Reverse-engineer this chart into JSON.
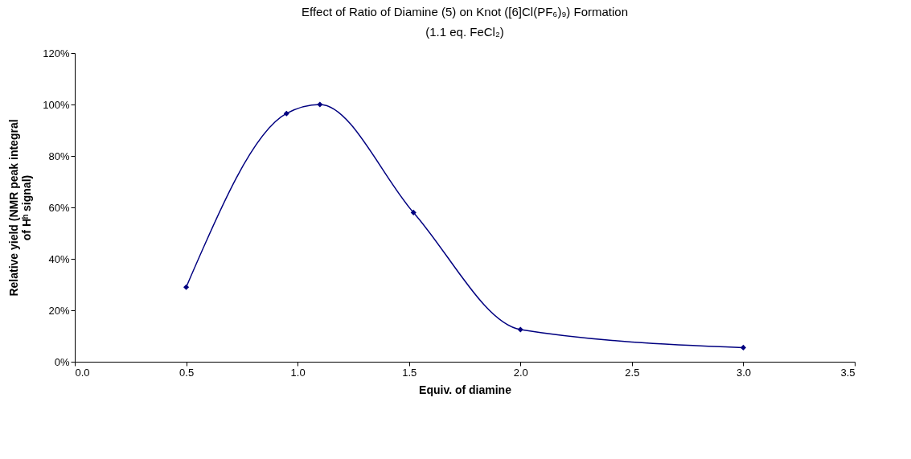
{
  "chart_data": {
    "type": "line",
    "title": "Effect of Ratio of Diamine (5) on Knot ([6]Cl(PF₆)₉) Formation",
    "subtitle": "(1.1 eq. FeCl₂)",
    "xlabel": "Equiv. of diamine",
    "ylabel": "Relative yield  (NMR peak integral\nof Hʰ signal)",
    "x": [
      0.5,
      0.95,
      1.1,
      1.52,
      2.0,
      3.0
    ],
    "series": [
      {
        "color": "#000080",
        "values": [
          29,
          96.5,
          100,
          58,
          12.5,
          5.5
        ]
      }
    ],
    "xlim": [
      0,
      3.5
    ],
    "xticks": [
      {
        "value": 0,
        "label": "0.0"
      },
      {
        "value": 0.5,
        "label": "0.5"
      },
      {
        "value": 1,
        "label": "1.0"
      },
      {
        "value": 1.5,
        "label": "1.5"
      },
      {
        "value": 2,
        "label": "2.0"
      },
      {
        "value": 2.5,
        "label": "2.5"
      },
      {
        "value": 3,
        "label": "3.0"
      },
      {
        "value": 3.5,
        "label": "3.5"
      }
    ],
    "ylim": [
      0,
      120
    ],
    "yticks": [
      {
        "value": 0,
        "label": "0%"
      },
      {
        "value": 20,
        "label": "20%"
      },
      {
        "value": 40,
        "label": "40%"
      },
      {
        "value": 60,
        "label": "60%"
      },
      {
        "value": 80,
        "label": "80%"
      },
      {
        "value": 100,
        "label": "100%"
      },
      {
        "value": 120,
        "label": "120%"
      }
    ],
    "grid": false,
    "marker": "diamond",
    "line_style": "solid"
  }
}
